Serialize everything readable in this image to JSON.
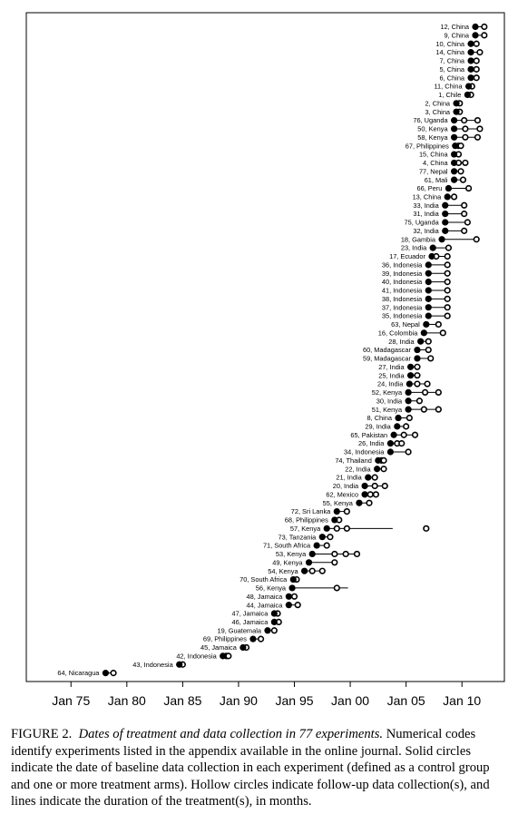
{
  "caption": {
    "label": "FIGURE 2.",
    "lead": "Dates of treatment and data collection in 77 experiments.",
    "text": "Numerical codes identify experiments listed in the appendix available in the online journal. Solid circles indicate the date of baseline data collection in each experiment (defined as a control group and one or more treatment arms). Hollow circles indicate follow-up data collection(s), and lines indicate the duration of the treatment(s), in months."
  },
  "chart_data": {
    "type": "scatter",
    "title": "",
    "xlabel": "",
    "ylabel": "",
    "xlim": [
      1971.0,
      2013.8
    ],
    "x_ticks": [
      1975,
      1980,
      1985,
      1990,
      1995,
      2000,
      2005,
      2010
    ],
    "x_tick_labels": [
      "Jan 75",
      "Jan 80",
      "Jan 85",
      "Jan 90",
      "Jan 95",
      "Jan 00",
      "Jan 05",
      "Jan 10"
    ],
    "grid": false,
    "marker_legend": {
      "solid": "baseline data collection",
      "hollow": "follow-up data collection",
      "line": "treatment duration"
    },
    "experiments": [
      {
        "label": "12, China",
        "baseline": 2011.2,
        "followups": [
          2012.0
        ],
        "treatment": [
          2011.2,
          2012.0
        ]
      },
      {
        "label": "9, China",
        "baseline": 2011.2,
        "followups": [
          2012.0
        ],
        "treatment": [
          2011.2,
          2012.0
        ]
      },
      {
        "label": "10, China",
        "baseline": 2010.8,
        "followups": [
          2011.3
        ],
        "treatment": [
          2010.8,
          2011.3
        ]
      },
      {
        "label": "14, China",
        "baseline": 2010.8,
        "followups": [
          2011.6
        ],
        "treatment": [
          2010.8,
          2011.6
        ]
      },
      {
        "label": "7, China",
        "baseline": 2010.8,
        "followups": [
          2011.3
        ],
        "treatment": [
          2010.8,
          2011.3
        ]
      },
      {
        "label": "5, China",
        "baseline": 2010.8,
        "followups": [
          2011.3
        ],
        "treatment": [
          2010.8,
          2011.3
        ]
      },
      {
        "label": "6, China",
        "baseline": 2010.8,
        "followups": [
          2011.3
        ],
        "treatment": [
          2010.8,
          2011.3
        ]
      },
      {
        "label": "11, China",
        "baseline": 2010.6,
        "followups": [
          2010.9
        ],
        "treatment": [
          2010.6,
          2010.9
        ]
      },
      {
        "label": "1, Chile",
        "baseline": 2010.5,
        "followups": [
          2010.8
        ],
        "treatment": [
          2010.5,
          2010.8
        ]
      },
      {
        "label": "2, China",
        "baseline": 2009.5,
        "followups": [
          2009.8
        ],
        "treatment": [
          2009.5,
          2009.8
        ]
      },
      {
        "label": "3, China",
        "baseline": 2009.5,
        "followups": [
          2009.8
        ],
        "treatment": [
          2009.5,
          2009.8
        ]
      },
      {
        "label": "76, Uganda",
        "baseline": 2009.3,
        "followups": [
          2010.2,
          2011.4
        ],
        "treatment": [
          2009.3,
          2011.4
        ]
      },
      {
        "label": "50, Kenya",
        "baseline": 2009.3,
        "followups": [
          2010.3,
          2011.6
        ],
        "treatment": [
          2009.3,
          2011.6
        ]
      },
      {
        "label": "58, Kenya",
        "baseline": 2009.3,
        "followups": [
          2010.3,
          2011.4
        ],
        "treatment": [
          2009.3,
          2011.4
        ]
      },
      {
        "label": "67, Philippines",
        "baseline": 2009.4,
        "followups": [
          2009.7,
          2009.9
        ],
        "treatment": [
          2009.4,
          2009.9
        ]
      },
      {
        "label": "15, China",
        "baseline": 2009.3,
        "followups": [
          2009.7
        ],
        "treatment": [
          2009.3,
          2009.7
        ]
      },
      {
        "label": "4, China",
        "baseline": 2009.3,
        "followups": [
          2009.7,
          2010.3
        ],
        "treatment": [
          2009.3,
          2010.3
        ]
      },
      {
        "label": "77, Nepal",
        "baseline": 2009.3,
        "followups": [
          2009.9
        ],
        "treatment": [
          2009.3,
          2009.9
        ]
      },
      {
        "label": "61, Mali",
        "baseline": 2009.3,
        "followups": [
          2010.1
        ],
        "treatment": [
          2009.3,
          2010.1
        ]
      },
      {
        "label": "66, Peru",
        "baseline": 2008.8,
        "followups": [
          2010.6
        ],
        "treatment": [
          2008.8,
          2010.6
        ]
      },
      {
        "label": "13, China",
        "baseline": 2008.7,
        "followups": [
          2009.3
        ],
        "treatment": [
          2008.7,
          2009.3
        ]
      },
      {
        "label": "33, India",
        "baseline": 2008.5,
        "followups": [
          2010.2
        ],
        "treatment": [
          2008.5,
          2010.2
        ]
      },
      {
        "label": "31, India",
        "baseline": 2008.5,
        "followups": [
          2010.2
        ],
        "treatment": [
          2008.5,
          2010.2
        ]
      },
      {
        "label": "75, Uganda",
        "baseline": 2008.5,
        "followups": [
          2010.5
        ],
        "treatment": [
          2008.5,
          2010.5
        ]
      },
      {
        "label": "32, India",
        "baseline": 2008.5,
        "followups": [
          2010.2
        ],
        "treatment": [
          2008.5,
          2010.2
        ]
      },
      {
        "label": "18, Gambia",
        "baseline": 2008.2,
        "followups": [
          2011.3
        ],
        "treatment": [
          2008.2,
          2011.3
        ]
      },
      {
        "label": "23, India",
        "baseline": 2007.4,
        "followups": [
          2008.8
        ],
        "treatment": [
          2007.4,
          2008.8
        ]
      },
      {
        "label": "17, Ecuador",
        "baseline": 2007.3,
        "followups": [
          2007.7,
          2008.7
        ],
        "treatment": [
          2007.3,
          2008.7
        ]
      },
      {
        "label": "36, Indonesia",
        "baseline": 2007.0,
        "followups": [
          2008.7
        ],
        "treatment": [
          2007.0,
          2008.7
        ]
      },
      {
        "label": "39, Indonesia",
        "baseline": 2007.0,
        "followups": [
          2008.7
        ],
        "treatment": [
          2007.0,
          2008.7
        ]
      },
      {
        "label": "40, Indonesia",
        "baseline": 2007.0,
        "followups": [
          2008.7
        ],
        "treatment": [
          2007.0,
          2008.7
        ]
      },
      {
        "label": "41, Indonesia",
        "baseline": 2007.0,
        "followups": [
          2008.7
        ],
        "treatment": [
          2007.0,
          2008.7
        ]
      },
      {
        "label": "38, Indonesia",
        "baseline": 2007.0,
        "followups": [
          2008.7
        ],
        "treatment": [
          2007.0,
          2008.7
        ]
      },
      {
        "label": "37, Indonesia",
        "baseline": 2007.0,
        "followups": [
          2008.7
        ],
        "treatment": [
          2007.0,
          2008.7
        ]
      },
      {
        "label": "35, Indonesia",
        "baseline": 2007.0,
        "followups": [
          2008.7
        ],
        "treatment": [
          2007.0,
          2008.7
        ]
      },
      {
        "label": "63, Nepal",
        "baseline": 2006.8,
        "followups": [
          2007.9
        ],
        "treatment": [
          2006.8,
          2007.9
        ]
      },
      {
        "label": "16, Colombia",
        "baseline": 2006.6,
        "followups": [
          2008.3
        ],
        "treatment": [
          2006.6,
          2008.3
        ]
      },
      {
        "label": "28, India",
        "baseline": 2006.3,
        "followups": [
          2007.0
        ],
        "treatment": [
          2006.3,
          2007.0
        ]
      },
      {
        "label": "60, Madagascar",
        "baseline": 2006.0,
        "followups": [
          2007.0
        ],
        "treatment": [
          2006.0,
          2007.0
        ]
      },
      {
        "label": "59, Madagascar",
        "baseline": 2006.0,
        "followups": [
          2007.2
        ],
        "treatment": [
          2006.0,
          2007.2
        ]
      },
      {
        "label": "27, India",
        "baseline": 2005.4,
        "followups": [
          2006.0
        ],
        "treatment": [
          2005.4,
          2006.0
        ]
      },
      {
        "label": "25, India",
        "baseline": 2005.4,
        "followups": [
          2006.0
        ],
        "treatment": [
          2005.4,
          2006.0
        ]
      },
      {
        "label": "24, India",
        "baseline": 2005.3,
        "followups": [
          2006.0,
          2006.9
        ],
        "treatment": [
          2005.3,
          2006.9
        ]
      },
      {
        "label": "52, Kenya",
        "baseline": 2005.2,
        "followups": [
          2006.7,
          2007.9
        ],
        "treatment": [
          2005.2,
          2007.9
        ]
      },
      {
        "label": "30, India",
        "baseline": 2005.2,
        "followups": [
          2006.2
        ],
        "treatment": [
          2005.2,
          2006.2
        ]
      },
      {
        "label": "51, Kenya",
        "baseline": 2005.2,
        "followups": [
          2006.6,
          2007.9
        ],
        "treatment": [
          2005.2,
          2007.9
        ]
      },
      {
        "label": "8, China",
        "baseline": 2004.3,
        "followups": [
          2005.3
        ],
        "treatment": [
          2004.3,
          2005.3
        ]
      },
      {
        "label": "29, India",
        "baseline": 2004.2,
        "followups": [
          2005.0
        ],
        "treatment": [
          2004.2,
          2005.0
        ]
      },
      {
        "label": "65, Pakistan",
        "baseline": 2003.9,
        "followups": [
          2004.8,
          2005.8
        ],
        "treatment": [
          2003.9,
          2005.8
        ]
      },
      {
        "label": "26, India",
        "baseline": 2003.6,
        "followups": [
          2004.2,
          2004.6
        ],
        "treatment": [
          2003.6,
          2004.6
        ]
      },
      {
        "label": "34, Indonesia",
        "baseline": 2003.6,
        "followups": [
          2005.2
        ],
        "treatment": [
          2003.6,
          2005.2
        ]
      },
      {
        "label": "74, Thailand",
        "baseline": 2002.5,
        "followups": [
          2002.8,
          2003.0
        ],
        "treatment": [
          2002.5,
          2003.0
        ]
      },
      {
        "label": "22, India",
        "baseline": 2002.4,
        "followups": [
          2003.0
        ],
        "treatment": [
          2002.4,
          2003.0
        ]
      },
      {
        "label": "21, India",
        "baseline": 2001.6,
        "followups": [
          2002.2
        ],
        "treatment": [
          2001.6,
          2002.2
        ]
      },
      {
        "label": "20, India",
        "baseline": 2001.3,
        "followups": [
          2002.2,
          2003.1
        ],
        "treatment": [
          2001.3,
          2003.1
        ]
      },
      {
        "label": "62, Mexico",
        "baseline": 2001.3,
        "followups": [
          2001.8,
          2002.3
        ],
        "treatment": [
          2001.3,
          2002.3
        ]
      },
      {
        "label": "55, Kenya",
        "baseline": 2000.8,
        "followups": [
          2001.7
        ],
        "treatment": [
          2000.8,
          2001.7
        ]
      },
      {
        "label": "72, Sri Lanka",
        "baseline": 1998.8,
        "followups": [
          1999.7
        ],
        "treatment": [
          1998.8,
          1999.7
        ]
      },
      {
        "label": "68, Philippines",
        "baseline": 1998.6,
        "followups": [
          1999.0
        ],
        "treatment": [
          1998.6,
          1999.0
        ]
      },
      {
        "label": "57, Kenya",
        "baseline": 1997.9,
        "followups": [
          1998.8,
          1999.7,
          2006.8
        ],
        "treatment": [
          1997.9,
          2003.8
        ]
      },
      {
        "label": "73, Tanzania",
        "baseline": 1997.5,
        "followups": [
          1998.2
        ],
        "treatment": [
          1997.5,
          1998.2
        ]
      },
      {
        "label": "71, South Africa",
        "baseline": 1997.0,
        "followups": [
          1997.9
        ],
        "treatment": [
          1997.0,
          1997.9
        ]
      },
      {
        "label": "53, Kenya",
        "baseline": 1996.6,
        "followups": [
          1998.6,
          1999.6,
          2000.6
        ],
        "treatment": [
          1996.6,
          2000.6
        ]
      },
      {
        "label": "49, Kenya",
        "baseline": 1996.3,
        "followups": [
          1998.6
        ],
        "treatment": [
          1996.3,
          1998.6
        ]
      },
      {
        "label": "54, Kenya",
        "baseline": 1995.9,
        "followups": [
          1996.6,
          1997.5
        ],
        "treatment": [
          1995.9,
          1997.5
        ]
      },
      {
        "label": "70, South Africa",
        "baseline": 1994.9,
        "followups": [
          1995.2
        ],
        "treatment": [
          1994.9,
          1995.2
        ]
      },
      {
        "label": "56, Kenya",
        "baseline": 1994.8,
        "followups": [
          1998.8
        ],
        "treatment": [
          1994.8,
          1999.8
        ]
      },
      {
        "label": "48, Jamaica",
        "baseline": 1994.5,
        "followups": [
          1995.0
        ],
        "treatment": [
          1994.5,
          1995.0
        ]
      },
      {
        "label": "44, Jamaica",
        "baseline": 1994.5,
        "followups": [
          1995.3
        ],
        "treatment": [
          1994.5,
          1995.3
        ]
      },
      {
        "label": "47, Jamaica",
        "baseline": 1993.2,
        "followups": [
          1993.5
        ],
        "treatment": [
          1993.2,
          1993.5
        ]
      },
      {
        "label": "46, Jamaica",
        "baseline": 1993.2,
        "followups": [
          1993.6
        ],
        "treatment": [
          1993.2,
          1993.6
        ]
      },
      {
        "label": "19, Guatemala",
        "baseline": 1992.6,
        "followups": [
          1993.2
        ],
        "treatment": [
          1992.6,
          1993.2
        ]
      },
      {
        "label": "69, Philippines",
        "baseline": 1991.3,
        "followups": [
          1992.0
        ],
        "treatment": [
          1991.3,
          1992.0
        ]
      },
      {
        "label": "45, Jamaica",
        "baseline": 1990.4,
        "followups": [
          1990.7
        ],
        "treatment": [
          1990.4,
          1990.7
        ]
      },
      {
        "label": "42, Indonesia",
        "baseline": 1988.6,
        "followups": [
          1988.9,
          1989.1
        ],
        "treatment": [
          1988.6,
          1989.1
        ]
      },
      {
        "label": "43, Indonesia",
        "baseline": 1984.7,
        "followups": [
          1985.0
        ],
        "treatment": [
          1984.7,
          1985.0
        ]
      },
      {
        "label": "64, Nicaragua",
        "baseline": 1978.1,
        "followups": [
          1978.8
        ],
        "treatment": [
          1978.1,
          1978.8
        ]
      }
    ]
  }
}
